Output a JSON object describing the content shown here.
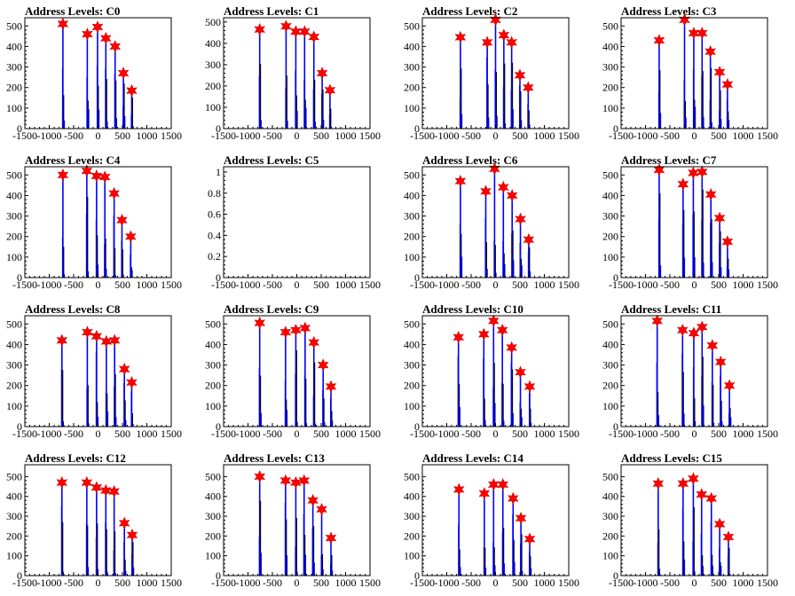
{
  "chart_data": {
    "type": "histogram-grid",
    "rows": 4,
    "cols": 4,
    "xlim": [
      -1500,
      1500
    ],
    "xticks": [
      -1500,
      -1000,
      -500,
      0,
      500,
      1000,
      1500
    ],
    "xtick_labels": [
      "-1500",
      "-1000",
      "-500",
      "0",
      "500",
      "1000",
      "1500"
    ],
    "bar_color": "#0000ff",
    "marker_color": "#ff0000",
    "panels": [
      {
        "title": "Address Levels: C0",
        "ylim": [
          0,
          540
        ],
        "yticks": [
          0,
          100,
          200,
          300,
          400,
          500
        ],
        "peaks": [
          {
            "x": -720,
            "y": 510
          },
          {
            "x": -220,
            "y": 460
          },
          {
            "x": -10,
            "y": 495
          },
          {
            "x": 160,
            "y": 440
          },
          {
            "x": 350,
            "y": 400
          },
          {
            "x": 520,
            "y": 270
          },
          {
            "x": 690,
            "y": 185
          }
        ]
      },
      {
        "title": "Address Levels: C1",
        "ylim": [
          0,
          520
        ],
        "yticks": [
          0,
          100,
          200,
          300,
          400,
          500
        ],
        "peaks": [
          {
            "x": -760,
            "y": 465
          },
          {
            "x": -220,
            "y": 480
          },
          {
            "x": -20,
            "y": 455
          },
          {
            "x": 160,
            "y": 455
          },
          {
            "x": 350,
            "y": 430
          },
          {
            "x": 520,
            "y": 260
          },
          {
            "x": 680,
            "y": 180
          }
        ]
      },
      {
        "title": "Address Levels: C2",
        "ylim": [
          0,
          540
        ],
        "yticks": [
          0,
          100,
          200,
          300,
          400,
          500
        ],
        "peaks": [
          {
            "x": -720,
            "y": 445
          },
          {
            "x": -170,
            "y": 420
          },
          {
            "x": 0,
            "y": 530
          },
          {
            "x": 170,
            "y": 455
          },
          {
            "x": 330,
            "y": 420
          },
          {
            "x": 500,
            "y": 260
          },
          {
            "x": 670,
            "y": 200
          }
        ]
      },
      {
        "title": "Address Levels: C3",
        "ylim": [
          0,
          540
        ],
        "yticks": [
          0,
          100,
          200,
          300,
          400,
          500
        ],
        "peaks": [
          {
            "x": -720,
            "y": 430
          },
          {
            "x": -200,
            "y": 530
          },
          {
            "x": -10,
            "y": 465
          },
          {
            "x": 160,
            "y": 465
          },
          {
            "x": 330,
            "y": 375
          },
          {
            "x": 520,
            "y": 275
          },
          {
            "x": 680,
            "y": 215
          }
        ]
      },
      {
        "title": "Address Levels: C4",
        "ylim": [
          0,
          540
        ],
        "yticks": [
          0,
          100,
          200,
          300,
          400,
          500
        ],
        "peaks": [
          {
            "x": -720,
            "y": 500
          },
          {
            "x": -230,
            "y": 520
          },
          {
            "x": -30,
            "y": 495
          },
          {
            "x": 140,
            "y": 490
          },
          {
            "x": 330,
            "y": 410
          },
          {
            "x": 490,
            "y": 280
          },
          {
            "x": 670,
            "y": 200
          }
        ]
      },
      {
        "title": "Address Levels: C5",
        "ylim": [
          0,
          1.05
        ],
        "yticks": [
          0,
          0.2,
          0.4,
          0.6,
          0.8,
          1
        ],
        "peaks": []
      },
      {
        "title": "Address Levels: C6",
        "ylim": [
          0,
          540
        ],
        "yticks": [
          0,
          100,
          200,
          300,
          400,
          500
        ],
        "peaks": [
          {
            "x": -720,
            "y": 470
          },
          {
            "x": -200,
            "y": 420
          },
          {
            "x": -20,
            "y": 530
          },
          {
            "x": 160,
            "y": 440
          },
          {
            "x": 340,
            "y": 400
          },
          {
            "x": 510,
            "y": 285
          },
          {
            "x": 680,
            "y": 185
          }
        ]
      },
      {
        "title": "Address Levels: C7",
        "ylim": [
          0,
          540
        ],
        "yticks": [
          0,
          100,
          200,
          300,
          400,
          500
        ],
        "peaks": [
          {
            "x": -720,
            "y": 525
          },
          {
            "x": -230,
            "y": 455
          },
          {
            "x": -20,
            "y": 510
          },
          {
            "x": 160,
            "y": 515
          },
          {
            "x": 340,
            "y": 405
          },
          {
            "x": 520,
            "y": 290
          },
          {
            "x": 680,
            "y": 175
          }
        ]
      },
      {
        "title": "Address Levels: C8",
        "ylim": [
          0,
          540
        ],
        "yticks": [
          0,
          100,
          200,
          300,
          400,
          500
        ],
        "peaks": [
          {
            "x": -740,
            "y": 420
          },
          {
            "x": -220,
            "y": 460
          },
          {
            "x": -30,
            "y": 440
          },
          {
            "x": 170,
            "y": 415
          },
          {
            "x": 340,
            "y": 420
          },
          {
            "x": 540,
            "y": 280
          },
          {
            "x": 690,
            "y": 215
          }
        ]
      },
      {
        "title": "Address Levels: C9",
        "ylim": [
          0,
          540
        ],
        "yticks": [
          0,
          100,
          200,
          300,
          400,
          500
        ],
        "peaks": [
          {
            "x": -760,
            "y": 505
          },
          {
            "x": -230,
            "y": 460
          },
          {
            "x": -20,
            "y": 470
          },
          {
            "x": 170,
            "y": 480
          },
          {
            "x": 350,
            "y": 410
          },
          {
            "x": 540,
            "y": 300
          },
          {
            "x": 700,
            "y": 195
          }
        ]
      },
      {
        "title": "Address Levels: C10",
        "ylim": [
          0,
          540
        ],
        "yticks": [
          0,
          100,
          200,
          300,
          400,
          500
        ],
        "peaks": [
          {
            "x": -760,
            "y": 435
          },
          {
            "x": -240,
            "y": 450
          },
          {
            "x": -40,
            "y": 515
          },
          {
            "x": 140,
            "y": 470
          },
          {
            "x": 330,
            "y": 385
          },
          {
            "x": 510,
            "y": 265
          },
          {
            "x": 700,
            "y": 195
          }
        ]
      },
      {
        "title": "Address Levels: C11",
        "ylim": [
          0,
          540
        ],
        "yticks": [
          0,
          100,
          200,
          300,
          400,
          500
        ],
        "peaks": [
          {
            "x": -760,
            "y": 515
          },
          {
            "x": -240,
            "y": 470
          },
          {
            "x": -10,
            "y": 455
          },
          {
            "x": 160,
            "y": 485
          },
          {
            "x": 370,
            "y": 395
          },
          {
            "x": 540,
            "y": 315
          },
          {
            "x": 720,
            "y": 200
          }
        ]
      },
      {
        "title": "Address Levels: C12",
        "ylim": [
          0,
          560
        ],
        "yticks": [
          0,
          100,
          200,
          300,
          400,
          500
        ],
        "peaks": [
          {
            "x": -740,
            "y": 470
          },
          {
            "x": -230,
            "y": 470
          },
          {
            "x": -30,
            "y": 445
          },
          {
            "x": 160,
            "y": 430
          },
          {
            "x": 330,
            "y": 425
          },
          {
            "x": 540,
            "y": 265
          },
          {
            "x": 700,
            "y": 205
          }
        ]
      },
      {
        "title": "Address Levels: C13",
        "ylim": [
          0,
          560
        ],
        "yticks": [
          0,
          100,
          200,
          300,
          400,
          500
        ],
        "peaks": [
          {
            "x": -760,
            "y": 500
          },
          {
            "x": -230,
            "y": 480
          },
          {
            "x": -20,
            "y": 470
          },
          {
            "x": 150,
            "y": 480
          },
          {
            "x": 330,
            "y": 380
          },
          {
            "x": 510,
            "y": 335
          },
          {
            "x": 700,
            "y": 190
          }
        ]
      },
      {
        "title": "Address Levels: C14",
        "ylim": [
          0,
          560
        ],
        "yticks": [
          0,
          100,
          200,
          300,
          400,
          500
        ],
        "peaks": [
          {
            "x": -750,
            "y": 435
          },
          {
            "x": -230,
            "y": 415
          },
          {
            "x": -40,
            "y": 460
          },
          {
            "x": 150,
            "y": 460
          },
          {
            "x": 360,
            "y": 390
          },
          {
            "x": 520,
            "y": 290
          },
          {
            "x": 700,
            "y": 185
          }
        ]
      },
      {
        "title": "Address Levels: C15",
        "ylim": [
          0,
          560
        ],
        "yticks": [
          0,
          100,
          200,
          300,
          400,
          500
        ],
        "peaks": [
          {
            "x": -740,
            "y": 465
          },
          {
            "x": -230,
            "y": 465
          },
          {
            "x": -20,
            "y": 490
          },
          {
            "x": 150,
            "y": 410
          },
          {
            "x": 350,
            "y": 390
          },
          {
            "x": 520,
            "y": 260
          },
          {
            "x": 700,
            "y": 195
          }
        ]
      }
    ]
  }
}
